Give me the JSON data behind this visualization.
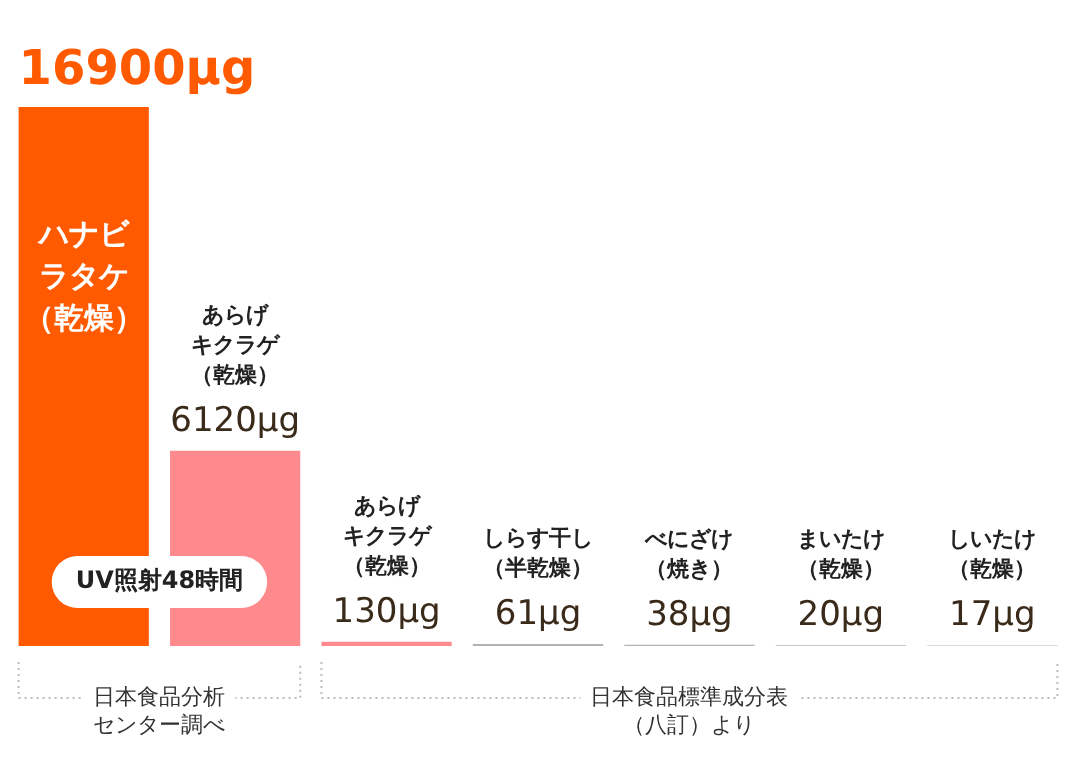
{
  "chart_data": {
    "type": "bar",
    "categories": [
      "ハナビラタケ（乾燥）",
      "あらげキクラゲ（乾燥）",
      "あらげキクラゲ（乾燥）",
      "しらす干し（半乾燥）",
      "べにざけ（焼き）",
      "まいたけ（乾燥）",
      "しいたけ（乾燥）"
    ],
    "values": [
      16900,
      6120,
      130,
      61,
      38,
      20,
      17
    ],
    "value_labels": [
      "16900μg",
      "6120μg",
      "130μg",
      "61μg",
      "38μg",
      "20μg",
      "17μg"
    ],
    "colors": [
      "#ff5a00",
      "#ff8a8e",
      "#ff8a8e",
      "#b3b3b3",
      "#b3b3b3",
      "#b3b3b3",
      "#b3b3b3"
    ],
    "annotations": [
      "UV照射48時間",
      "日本食品分析センター調べ",
      "日本食品標準成分表（八訂）より"
    ],
    "tick_labels": "x",
    "legend": false
  }
}
